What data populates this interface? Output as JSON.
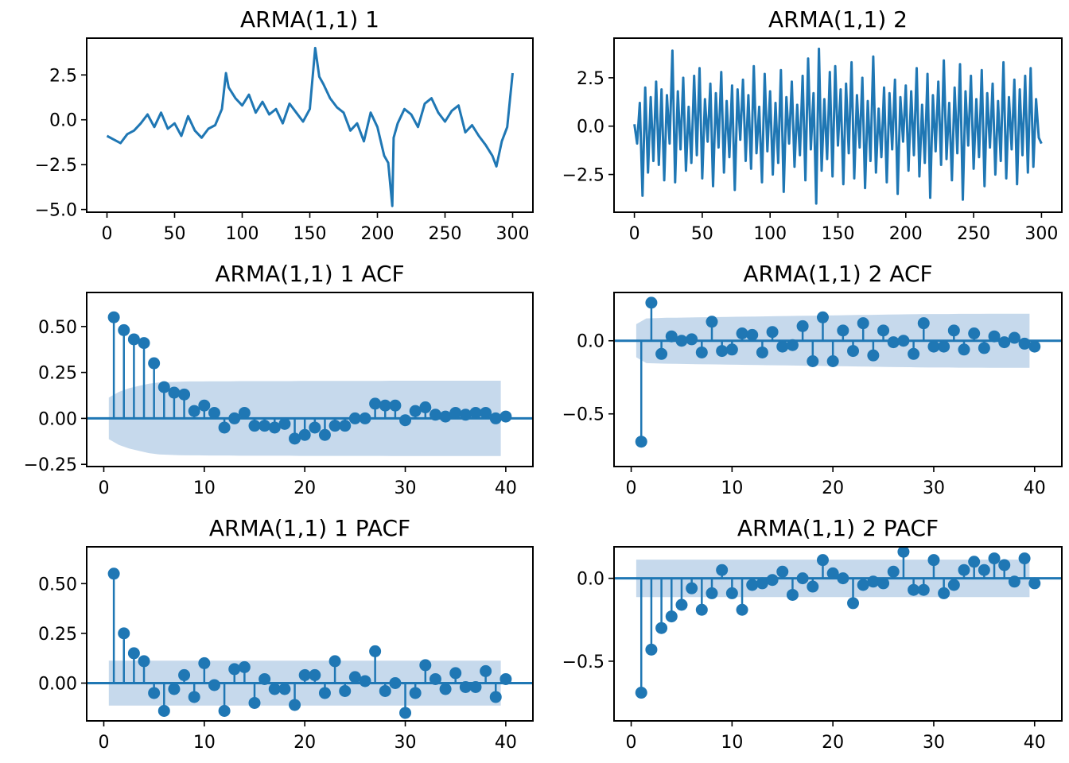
{
  "colors": {
    "line": "#1f77b4",
    "band": "#c6d9ec",
    "axis": "#000000"
  },
  "chart_data": [
    {
      "type": "line",
      "title": "ARMA(1,1) 1",
      "xlim": [
        -15,
        315
      ],
      "ylim": [
        -5.15,
        4.55
      ],
      "xticks": [
        0,
        50,
        100,
        150,
        200,
        250,
        300
      ],
      "yticks": [
        -5.0,
        -2.5,
        0.0,
        2.5
      ],
      "ytick_labels": [
        "−5.0",
        "−2.5",
        "0.0",
        "2.5"
      ],
      "series": [
        {
          "x": [
            0,
            5,
            10,
            15,
            20,
            25,
            30,
            35,
            40,
            45,
            50,
            55,
            60,
            65,
            70,
            75,
            80,
            85,
            88,
            90,
            95,
            100,
            105,
            110,
            115,
            120,
            125,
            130,
            135,
            140,
            145,
            150,
            154,
            157,
            160,
            165,
            170,
            175,
            180,
            185,
            190,
            195,
            200,
            205,
            208,
            211,
            212,
            215,
            220,
            225,
            230,
            235,
            240,
            245,
            250,
            255,
            260,
            265,
            270,
            275,
            280,
            285,
            288,
            292,
            296,
            300
          ],
          "y": [
            -0.9,
            -1.1,
            -1.3,
            -0.8,
            -0.6,
            -0.2,
            0.3,
            -0.4,
            0.4,
            -0.5,
            -0.2,
            -0.9,
            0.2,
            -0.6,
            -1.0,
            -0.5,
            -0.3,
            0.6,
            2.6,
            1.8,
            1.2,
            0.8,
            1.4,
            0.4,
            1.0,
            0.3,
            0.6,
            -0.2,
            0.9,
            0.4,
            -0.1,
            0.6,
            4.0,
            2.4,
            2.0,
            1.2,
            0.7,
            0.4,
            -0.6,
            -0.2,
            -1.2,
            0.4,
            -0.4,
            -2.0,
            -2.4,
            -4.8,
            -1.0,
            -0.2,
            0.6,
            0.3,
            -0.4,
            0.9,
            1.2,
            0.4,
            -0.1,
            0.5,
            0.8,
            -0.7,
            -0.3,
            -0.9,
            -1.4,
            -2.0,
            -2.6,
            -1.2,
            -0.4,
            2.6
          ]
        }
      ]
    },
    {
      "type": "line",
      "title": "ARMA(1,1) 2",
      "xlim": [
        -15,
        315
      ],
      "ylim": [
        -4.45,
        4.55
      ],
      "xticks": [
        0,
        50,
        100,
        150,
        200,
        250,
        300
      ],
      "yticks": [
        -2.5,
        0.0,
        2.5
      ],
      "ytick_labels": [
        "−2.5",
        "0.0",
        "2.5"
      ],
      "series": [
        {
          "x": [
            0,
            2,
            4,
            6,
            8,
            10,
            12,
            14,
            16,
            18,
            20,
            22,
            24,
            26,
            28,
            30,
            32,
            34,
            36,
            38,
            40,
            42,
            44,
            46,
            48,
            50,
            52,
            54,
            56,
            58,
            60,
            62,
            64,
            66,
            68,
            70,
            72,
            74,
            76,
            78,
            80,
            82,
            84,
            86,
            88,
            90,
            92,
            94,
            96,
            98,
            100,
            102,
            104,
            106,
            108,
            110,
            112,
            114,
            116,
            118,
            120,
            122,
            124,
            126,
            128,
            130,
            132,
            134,
            136,
            138,
            140,
            142,
            144,
            146,
            148,
            150,
            152,
            154,
            156,
            158,
            160,
            162,
            164,
            166,
            168,
            170,
            172,
            174,
            176,
            178,
            180,
            182,
            184,
            186,
            188,
            190,
            192,
            194,
            196,
            198,
            200,
            202,
            204,
            206,
            208,
            210,
            212,
            214,
            216,
            218,
            220,
            222,
            224,
            226,
            228,
            230,
            232,
            234,
            236,
            238,
            240,
            242,
            244,
            246,
            248,
            250,
            252,
            254,
            256,
            258,
            260,
            262,
            264,
            266,
            268,
            270,
            272,
            274,
            276,
            278,
            280,
            282,
            284,
            286,
            288,
            290,
            292,
            294,
            296,
            298,
            300
          ],
          "y": [
            0.1,
            -0.9,
            1.2,
            -3.6,
            2.0,
            -2.4,
            1.5,
            -1.8,
            2.3,
            -2.0,
            1.9,
            -2.8,
            1.6,
            -0.9,
            3.9,
            -2.9,
            1.8,
            -1.2,
            2.5,
            -2.3,
            1.0,
            -1.9,
            2.6,
            -1.5,
            3.0,
            -2.7,
            1.4,
            -0.8,
            2.2,
            -3.1,
            1.7,
            -1.1,
            2.8,
            -2.4,
            1.3,
            -1.6,
            2.1,
            -3.3,
            1.9,
            -0.7,
            2.4,
            -1.8,
            1.6,
            -2.2,
            3.1,
            -1.4,
            1.0,
            -2.9,
            2.7,
            -1.3,
            1.8,
            -2.5,
            1.2,
            -1.9,
            2.9,
            -3.4,
            1.5,
            -0.9,
            2.3,
            -2.1,
            1.1,
            -1.5,
            2.6,
            -2.8,
            3.5,
            -1.2,
            1.7,
            -4.0,
            4.0,
            -2.3,
            1.4,
            -1.7,
            2.8,
            -2.6,
            3.1,
            -1.0,
            1.9,
            -3.0,
            2.2,
            -1.4,
            3.3,
            -2.7,
            1.6,
            -1.1,
            2.5,
            -3.2,
            1.3,
            -1.8,
            3.6,
            -2.4,
            0.9,
            -1.6,
            2.0,
            -2.9,
            1.7,
            -1.2,
            2.4,
            -3.5,
            1.5,
            -0.8,
            2.1,
            -2.3,
            1.8,
            -1.5,
            3.0,
            -2.6,
            1.1,
            -1.9,
            2.7,
            -3.7,
            1.6,
            -1.3,
            2.3,
            -2.0,
            3.4,
            -1.7,
            1.2,
            -2.8,
            2.0,
            -1.4,
            3.2,
            -3.8,
            1.8,
            -1.0,
            2.6,
            -2.2,
            1.4,
            -1.6,
            2.9,
            -3.1,
            1.7,
            -1.1,
            2.2,
            -2.5,
            1.3,
            -1.8,
            3.3,
            -2.7,
            1.5,
            -1.2,
            2.4,
            -3.0,
            1.9,
            -1.5,
            2.6,
            -2.4,
            3.0,
            -2.1,
            1.4,
            -0.6,
            -0.9
          ]
        }
      ]
    },
    {
      "type": "stem",
      "title": "ARMA(1,1) 1 ACF",
      "xlim": [
        -1.7,
        42.7
      ],
      "ylim": [
        -0.262,
        0.685
      ],
      "xticks": [
        0,
        10,
        20,
        30,
        40
      ],
      "yticks": [
        -0.25,
        0.0,
        0.25,
        0.5
      ],
      "ytick_labels": [
        "−0.25",
        "0.00",
        "0.25",
        "0.50"
      ],
      "lags": [
        1,
        2,
        3,
        4,
        5,
        6,
        7,
        8,
        9,
        10,
        11,
        12,
        13,
        14,
        15,
        16,
        17,
        18,
        19,
        20,
        21,
        22,
        23,
        24,
        25,
        26,
        27,
        28,
        29,
        30,
        31,
        32,
        33,
        34,
        35,
        36,
        37,
        38,
        39,
        40
      ],
      "values": [
        0.55,
        0.48,
        0.43,
        0.41,
        0.3,
        0.17,
        0.14,
        0.13,
        0.04,
        0.07,
        0.03,
        -0.05,
        0.0,
        0.03,
        -0.04,
        -0.04,
        -0.05,
        -0.03,
        -0.11,
        -0.09,
        -0.05,
        -0.09,
        -0.04,
        -0.04,
        0.0,
        0.0,
        0.08,
        0.07,
        0.07,
        -0.01,
        0.04,
        0.06,
        0.02,
        0.01,
        0.03,
        0.02,
        0.03,
        0.03,
        0.0,
        0.01
      ],
      "confint_upper": [
        0.113,
        0.144,
        0.164,
        0.177,
        0.189,
        0.196,
        0.198,
        0.2,
        0.201,
        0.201,
        0.202,
        0.202,
        0.202,
        0.203,
        0.203,
        0.203,
        0.203,
        0.203,
        0.203,
        0.204,
        0.204,
        0.204,
        0.204,
        0.204,
        0.204,
        0.204,
        0.204,
        0.204,
        0.205,
        0.205,
        0.205,
        0.205,
        0.205,
        0.205,
        0.205,
        0.205,
        0.205,
        0.205,
        0.205,
        0.205
      ]
    },
    {
      "type": "stem",
      "title": "ARMA(1,1) 2 ACF",
      "xlim": [
        -1.7,
        42.7
      ],
      "ylim": [
        -0.86,
        0.33
      ],
      "xticks": [
        0,
        10,
        20,
        30,
        40
      ],
      "yticks": [
        -0.5,
        0.0
      ],
      "ytick_labels": [
        "−0.5",
        "0.0"
      ],
      "lags": [
        1,
        2,
        3,
        4,
        5,
        6,
        7,
        8,
        9,
        10,
        11,
        12,
        13,
        14,
        15,
        16,
        17,
        18,
        19,
        20,
        21,
        22,
        23,
        24,
        25,
        26,
        27,
        28,
        29,
        30,
        31,
        32,
        33,
        34,
        35,
        36,
        37,
        38,
        39,
        40
      ],
      "values": [
        -0.69,
        0.26,
        -0.09,
        0.03,
        0.0,
        0.01,
        -0.08,
        0.13,
        -0.07,
        -0.06,
        0.05,
        0.04,
        -0.08,
        0.06,
        -0.04,
        -0.03,
        0.1,
        -0.14,
        0.16,
        -0.14,
        0.07,
        -0.07,
        0.12,
        -0.1,
        0.07,
        -0.01,
        0.0,
        -0.09,
        0.12,
        -0.04,
        -0.04,
        0.07,
        -0.06,
        0.05,
        -0.05,
        0.03,
        -0.01,
        0.02,
        -0.02,
        -0.04
      ],
      "confint_upper": [
        0.113,
        0.153,
        0.155,
        0.157,
        0.158,
        0.159,
        0.16,
        0.161,
        0.162,
        0.163,
        0.164,
        0.165,
        0.166,
        0.167,
        0.168,
        0.169,
        0.17,
        0.171,
        0.172,
        0.173,
        0.174,
        0.175,
        0.176,
        0.177,
        0.178,
        0.179,
        0.18,
        0.181,
        0.182,
        0.183,
        0.183,
        0.183,
        0.184,
        0.184,
        0.184,
        0.185,
        0.185,
        0.185,
        0.185,
        0.185
      ]
    },
    {
      "type": "stem",
      "title": "ARMA(1,1) 1 PACF",
      "xlim": [
        -1.7,
        42.7
      ],
      "ylim": [
        -0.19,
        0.685
      ],
      "xticks": [
        0,
        10,
        20,
        30,
        40
      ],
      "yticks": [
        0.0,
        0.25,
        0.5
      ],
      "ytick_labels": [
        "0.00",
        "0.25",
        "0.50"
      ],
      "lags": [
        1,
        2,
        3,
        4,
        5,
        6,
        7,
        8,
        9,
        10,
        11,
        12,
        13,
        14,
        15,
        16,
        17,
        18,
        19,
        20,
        21,
        22,
        23,
        24,
        25,
        26,
        27,
        28,
        29,
        30,
        31,
        32,
        33,
        34,
        35,
        36,
        37,
        38,
        39,
        40
      ],
      "values": [
        0.55,
        0.25,
        0.15,
        0.11,
        -0.05,
        -0.14,
        -0.03,
        0.04,
        -0.07,
        0.1,
        -0.01,
        -0.14,
        0.07,
        0.08,
        -0.1,
        0.02,
        -0.03,
        -0.03,
        -0.11,
        0.04,
        0.04,
        -0.05,
        0.11,
        -0.04,
        0.03,
        0.01,
        0.16,
        -0.04,
        0.0,
        -0.15,
        -0.05,
        0.09,
        0.02,
        -0.03,
        0.05,
        -0.02,
        -0.02,
        0.06,
        -0.07,
        0.02
      ],
      "confint_upper": [
        0.113,
        0.113,
        0.113,
        0.113,
        0.113,
        0.113,
        0.113,
        0.113,
        0.113,
        0.113,
        0.113,
        0.113,
        0.113,
        0.113,
        0.113,
        0.113,
        0.113,
        0.113,
        0.113,
        0.113,
        0.113,
        0.113,
        0.113,
        0.113,
        0.113,
        0.113,
        0.113,
        0.113,
        0.113,
        0.113,
        0.113,
        0.113,
        0.113,
        0.113,
        0.113,
        0.113,
        0.113,
        0.113,
        0.113,
        0.113
      ]
    },
    {
      "type": "stem",
      "title": "ARMA(1,1) 2 PACF",
      "xlim": [
        -1.7,
        42.7
      ],
      "ylim": [
        -0.86,
        0.19
      ],
      "xticks": [
        0,
        10,
        20,
        30,
        40
      ],
      "yticks": [
        -0.5,
        0.0
      ],
      "ytick_labels": [
        "−0.5",
        "0.0"
      ],
      "lags": [
        1,
        2,
        3,
        4,
        5,
        6,
        7,
        8,
        9,
        10,
        11,
        12,
        13,
        14,
        15,
        16,
        17,
        18,
        19,
        20,
        21,
        22,
        23,
        24,
        25,
        26,
        27,
        28,
        29,
        30,
        31,
        32,
        33,
        34,
        35,
        36,
        37,
        38,
        39,
        40
      ],
      "values": [
        -0.69,
        -0.43,
        -0.3,
        -0.23,
        -0.16,
        -0.06,
        -0.19,
        -0.09,
        0.05,
        -0.09,
        -0.19,
        -0.04,
        -0.03,
        -0.01,
        0.04,
        -0.1,
        0.0,
        -0.05,
        0.11,
        0.03,
        0.0,
        -0.15,
        -0.04,
        -0.02,
        -0.03,
        0.04,
        0.16,
        -0.07,
        -0.07,
        0.11,
        -0.09,
        -0.04,
        0.05,
        0.1,
        0.05,
        0.12,
        0.08,
        -0.02,
        0.12,
        -0.03
      ],
      "confint_upper": [
        0.113,
        0.113,
        0.113,
        0.113,
        0.113,
        0.113,
        0.113,
        0.113,
        0.113,
        0.113,
        0.113,
        0.113,
        0.113,
        0.113,
        0.113,
        0.113,
        0.113,
        0.113,
        0.113,
        0.113,
        0.113,
        0.113,
        0.113,
        0.113,
        0.113,
        0.113,
        0.113,
        0.113,
        0.113,
        0.113,
        0.113,
        0.113,
        0.113,
        0.113,
        0.113,
        0.113,
        0.113,
        0.113,
        0.113,
        0.113
      ]
    }
  ]
}
